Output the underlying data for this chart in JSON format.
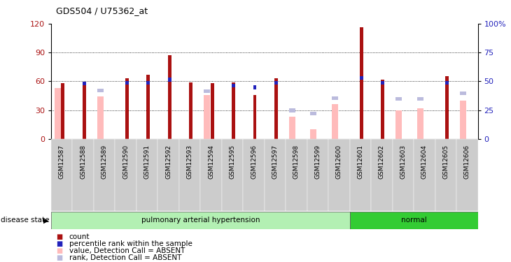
{
  "title": "GDS504 / U75362_at",
  "samples": [
    "GSM12587",
    "GSM12588",
    "GSM12589",
    "GSM12590",
    "GSM12591",
    "GSM12592",
    "GSM12593",
    "GSM12594",
    "GSM12595",
    "GSM12596",
    "GSM12597",
    "GSM12598",
    "GSM12599",
    "GSM12600",
    "GSM12601",
    "GSM12602",
    "GSM12603",
    "GSM12604",
    "GSM12605",
    "GSM12606"
  ],
  "red_bars": [
    58,
    59,
    null,
    63,
    67,
    87,
    59,
    58,
    59,
    46,
    63,
    null,
    null,
    null,
    116,
    62,
    null,
    null,
    65,
    null
  ],
  "pink_bars": [
    53,
    null,
    44,
    null,
    null,
    null,
    null,
    46,
    null,
    null,
    null,
    23,
    10,
    36,
    null,
    null,
    30,
    32,
    null,
    40
  ],
  "blue_squares": [
    null,
    59,
    null,
    60,
    60,
    63,
    null,
    null,
    57,
    55,
    60,
    null,
    null,
    null,
    65,
    60,
    null,
    null,
    60,
    null
  ],
  "light_blue_squares": [
    null,
    null,
    52,
    null,
    null,
    null,
    null,
    51,
    null,
    null,
    null,
    31,
    28,
    44,
    null,
    null,
    43,
    43,
    null,
    49
  ],
  "groups": [
    {
      "label": "pulmonary arterial hypertension",
      "start": 0,
      "end": 13,
      "color": "#b3f0b3"
    },
    {
      "label": "normal",
      "start": 14,
      "end": 19,
      "color": "#33cc33"
    }
  ],
  "ylim_left": [
    0,
    120
  ],
  "ylim_right": [
    0,
    100
  ],
  "yticks_left": [
    0,
    30,
    60,
    90,
    120
  ],
  "yticks_right": [
    0,
    25,
    50,
    75,
    100
  ],
  "ytick_labels_right": [
    "0",
    "25",
    "50",
    "75",
    "100%"
  ],
  "red_color": "#aa1111",
  "pink_color": "#ffbbbb",
  "blue_color": "#2222bb",
  "light_blue_color": "#bbbbdd",
  "bg_color": "#cccccc",
  "disease_state_label": "disease state"
}
